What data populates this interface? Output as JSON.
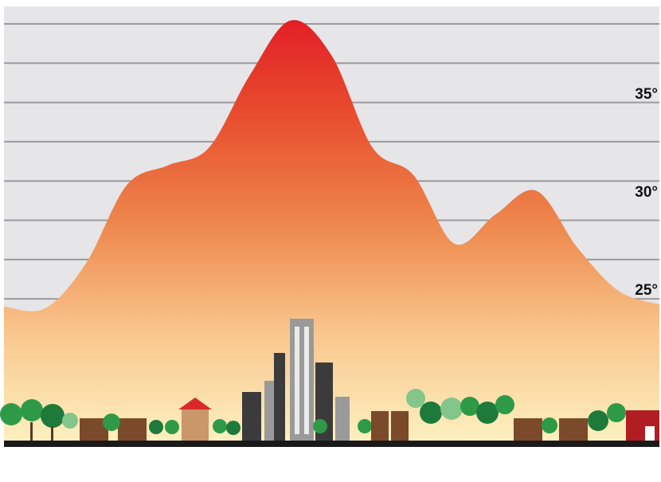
{
  "chart_data": {
    "type": "area",
    "categories": [
      null,
      null,
      null,
      null,
      null,
      null,
      null,
      null,
      null,
      null,
      null,
      null,
      null,
      null,
      null,
      null,
      null
    ],
    "values": [
      24.6,
      24.5,
      26.8,
      30.8,
      31.8,
      32.7,
      36.4,
      39.2,
      37.4,
      32.7,
      31.3,
      27.8,
      29.3,
      30.5,
      27.6,
      25.4,
      24.7
    ],
    "colors": [
      "#e31d26",
      "#e8512f",
      "#ee8a4f",
      "#f9c88f",
      "#fdf0c0"
    ],
    "ylim": [
      18,
      40
    ],
    "yticks": [
      {
        "value": 35,
        "label": "35°"
      },
      {
        "value": 30,
        "label": "30°"
      },
      {
        "value": 25,
        "label": "25°"
      }
    ]
  }
}
